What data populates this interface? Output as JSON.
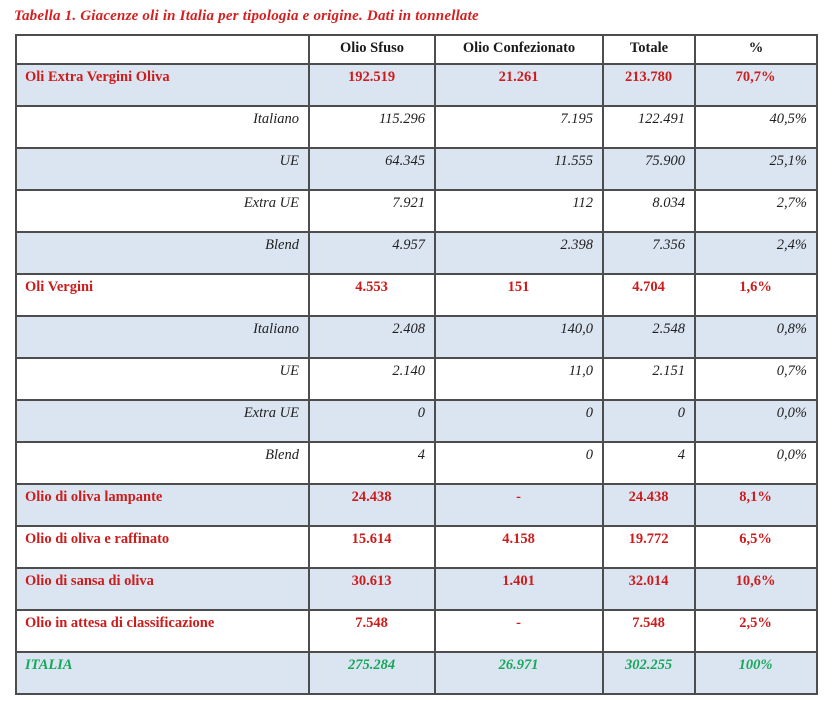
{
  "title": "Tabella 1. Giacenze oli in Italia per tipologia e origine. Dati in tonnellate",
  "colors": {
    "title_red": "#d42020",
    "category_red": "#cc1c1c",
    "total_green": "#16a85a",
    "row_shade_blue": "#dbe5f1",
    "border_gray": "#4d4d4d"
  },
  "columns": [
    "",
    "Olio Sfuso",
    "Olio Confezionato",
    "Totale",
    "%"
  ],
  "rows": [
    {
      "label": "Oli Extra Vergini Oliva",
      "type": "category",
      "shaded": true,
      "values": [
        "192.519",
        "21.261",
        "213.780",
        "70,7%"
      ]
    },
    {
      "label": "Italiano",
      "type": "sub",
      "shaded": false,
      "values": [
        "115.296",
        "7.195",
        "122.491",
        "40,5%"
      ]
    },
    {
      "label": "UE",
      "type": "sub",
      "shaded": true,
      "values": [
        "64.345",
        "11.555",
        "75.900",
        "25,1%"
      ]
    },
    {
      "label": "Extra UE",
      "type": "sub",
      "shaded": false,
      "values": [
        "7.921",
        "112",
        "8.034",
        "2,7%"
      ]
    },
    {
      "label": "Blend",
      "type": "sub",
      "shaded": true,
      "values": [
        "4.957",
        "2.398",
        "7.356",
        "2,4%"
      ]
    },
    {
      "label": "Oli Vergini",
      "type": "category",
      "shaded": false,
      "values": [
        "4.553",
        "151",
        "4.704",
        "1,6%"
      ]
    },
    {
      "label": "Italiano",
      "type": "sub",
      "shaded": true,
      "values": [
        "2.408",
        "140,0",
        "2.548",
        "0,8%"
      ]
    },
    {
      "label": "UE",
      "type": "sub",
      "shaded": false,
      "values": [
        "2.140",
        "11,0",
        "2.151",
        "0,7%"
      ]
    },
    {
      "label": "Extra UE",
      "type": "sub",
      "shaded": true,
      "values": [
        "0",
        "0",
        "0",
        "0,0%"
      ]
    },
    {
      "label": "Blend",
      "type": "sub",
      "shaded": false,
      "values": [
        "4",
        "0",
        "4",
        "0,0%"
      ]
    },
    {
      "label": "Olio di oliva lampante",
      "type": "category",
      "shaded": true,
      "values": [
        "24.438",
        "-",
        "24.438",
        "8,1%"
      ]
    },
    {
      "label": "Olio di oliva e raffinato",
      "type": "category",
      "shaded": false,
      "values": [
        "15.614",
        "4.158",
        "19.772",
        "6,5%"
      ]
    },
    {
      "label": "Olio di sansa di oliva",
      "type": "category",
      "shaded": true,
      "values": [
        "30.613",
        "1.401",
        "32.014",
        "10,6%"
      ]
    },
    {
      "label": "Olio in attesa di classificazione",
      "type": "category",
      "shaded": false,
      "values": [
        "7.548",
        "-",
        "7.548",
        "2,5%"
      ]
    },
    {
      "label": "ITALIA",
      "type": "total",
      "shaded": true,
      "values": [
        "275.284",
        "26.971",
        "302.255",
        "100%"
      ]
    }
  ]
}
